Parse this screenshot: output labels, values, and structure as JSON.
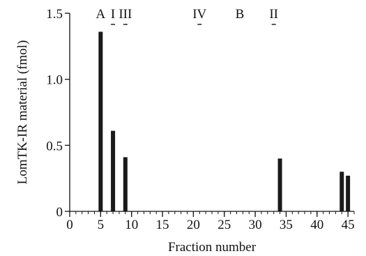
{
  "chart_data": {
    "type": "bar",
    "xlabel": "Fraction number",
    "ylabel": "LomTK-IR material (fmol)",
    "xlim": [
      0,
      46
    ],
    "ylim": [
      0,
      1.5
    ],
    "x_ticks": [
      0,
      5,
      10,
      15,
      20,
      25,
      30,
      35,
      40,
      45
    ],
    "x_tick_labels": [
      "0",
      "5",
      "10",
      "15",
      "20",
      "25",
      "30",
      "35",
      "40",
      "45"
    ],
    "x_minor_step": 1,
    "y_ticks": [
      0,
      0.5,
      1.0,
      1.5
    ],
    "y_tick_labels": [
      "0",
      "0.5",
      "1.0",
      "1.5"
    ],
    "grid": false,
    "bar_color": "#1a1a1a",
    "x": [
      5,
      7,
      9,
      34,
      44,
      45
    ],
    "values": [
      1.36,
      0.61,
      0.41,
      0.4,
      0.3,
      0.27
    ],
    "markers": [
      {
        "label": "A",
        "x": 5,
        "dash": false
      },
      {
        "label": "I",
        "x": 7,
        "dash": true
      },
      {
        "label": "III",
        "x": 9,
        "dash": true
      },
      {
        "label": "IV",
        "x": 21,
        "dash": true
      },
      {
        "label": "B",
        "x": 27.5,
        "dash": false
      },
      {
        "label": "II",
        "x": 33,
        "dash": true
      }
    ]
  }
}
